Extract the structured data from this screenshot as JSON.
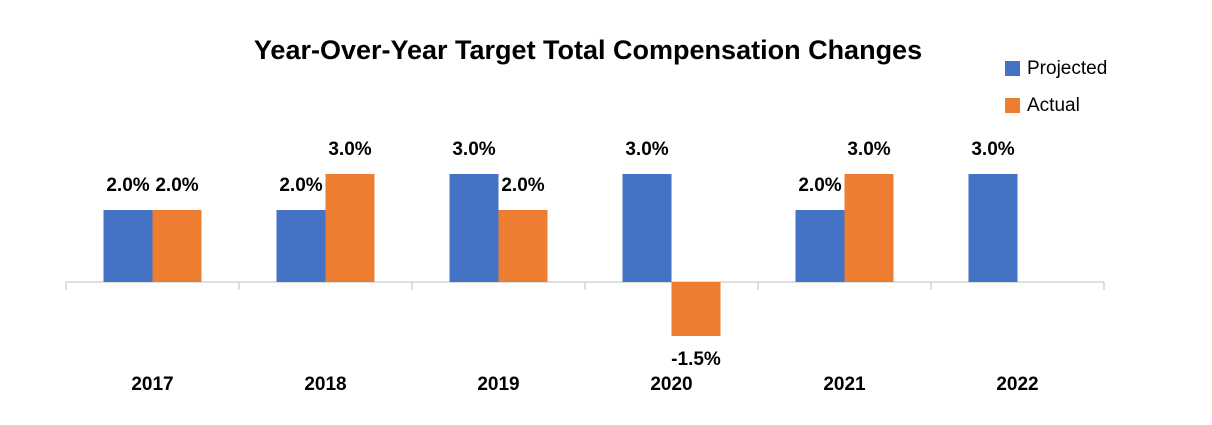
{
  "chart_data": {
    "type": "bar",
    "title": "Year-Over-Year Target Total Compensation Changes",
    "categories": [
      "2017",
      "2018",
      "2019",
      "2020",
      "2021",
      "2022"
    ],
    "series": [
      {
        "name": "Projected",
        "color": "#4472c4",
        "values": [
          2,
          2,
          3,
          3,
          2,
          3
        ],
        "value_labels": [
          "2.0%",
          "2.0%",
          "3.0%",
          "3.0%",
          "2.0%",
          "3.0%"
        ]
      },
      {
        "name": "Actual",
        "color": "#ed7d31",
        "values": [
          2,
          3,
          2,
          -1.5,
          3,
          null
        ],
        "value_labels": [
          "2.0%",
          "3.0%",
          "2.0%",
          "-1.5%",
          "3.0%",
          null
        ]
      }
    ],
    "ylim": [
      -2.5,
      4
    ],
    "legend": "top-right"
  }
}
